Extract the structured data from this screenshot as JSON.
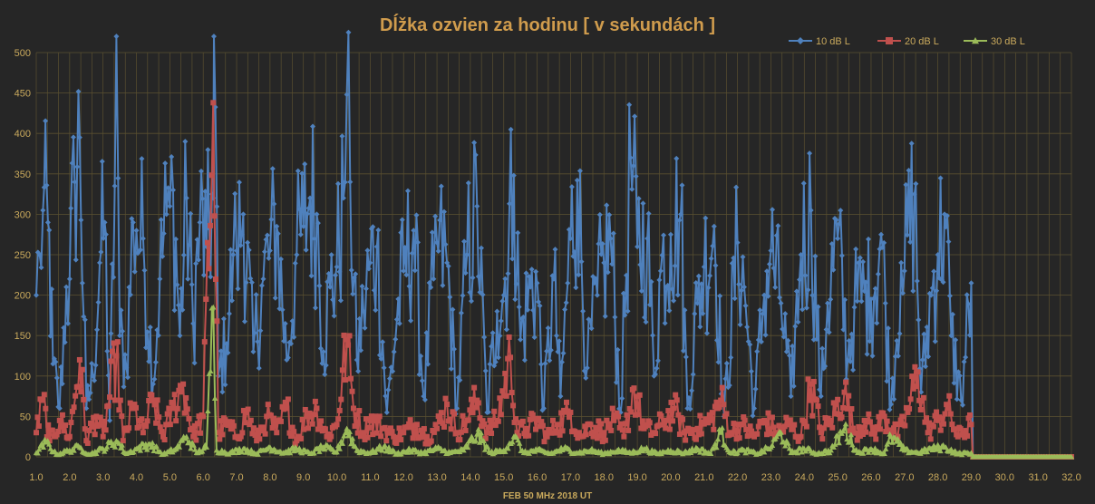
{
  "chart_data": {
    "type": "line",
    "title": "Dĺžka ozvien za hodinu [ v sekundách ]",
    "xlabel": "FEB 50 MHz  2018  UT",
    "ylabel": "",
    "xlim": [
      1.0,
      32.0
    ],
    "ylim": [
      0,
      500
    ],
    "x_ticks": [
      "1.0",
      "2.0",
      "3.0",
      "4.0",
      "5.0",
      "6.0",
      "7.0",
      "8.0",
      "9.0",
      "10.0",
      "11.0",
      "12.0",
      "13.0",
      "14.0",
      "15.0",
      "16.0",
      "17.0",
      "18.0",
      "19.0",
      "20.0",
      "21.0",
      "22.0",
      "23.0",
      "24.0",
      "25.0",
      "26.0",
      "27.0",
      "28.0",
      "29.0",
      "30.0",
      "31.0",
      "32.0"
    ],
    "y_ticks": [
      "0",
      "50",
      "100",
      "150",
      "200",
      "250",
      "300",
      "350",
      "400",
      "450",
      "500"
    ],
    "grid": true,
    "legend_position": "top-right",
    "colors": {
      "background": "#262626",
      "grid": "#5a5030",
      "axis_text": "#c9a95c",
      "title": "#d09c4d"
    },
    "sampling_note_hours": 1,
    "series": [
      {
        "name": "10 dB L",
        "color": "#4f81bd",
        "marker": "diamond",
        "keypoints": [
          [
            1.0,
            200
          ],
          [
            1.1,
            250
          ],
          [
            1.2,
            305
          ],
          [
            1.35,
            290
          ],
          [
            1.5,
            115
          ],
          [
            1.7,
            60
          ],
          [
            1.9,
            210
          ],
          [
            2.0,
            220
          ],
          [
            2.15,
            340
          ],
          [
            2.3,
            395
          ],
          [
            2.5,
            60
          ],
          [
            2.7,
            100
          ],
          [
            2.9,
            240
          ],
          [
            3.05,
            290
          ],
          [
            3.2,
            45
          ],
          [
            3.35,
            335
          ],
          [
            3.4,
            520
          ],
          [
            3.5,
            150
          ],
          [
            3.7,
            110
          ],
          [
            3.9,
            290
          ],
          [
            4.0,
            280
          ],
          [
            4.2,
            270
          ],
          [
            4.5,
            90
          ],
          [
            4.7,
            220
          ],
          [
            4.9,
            300
          ],
          [
            5.0,
            310
          ],
          [
            5.1,
            330
          ],
          [
            5.3,
            150
          ],
          [
            5.5,
            320
          ],
          [
            5.7,
            165
          ],
          [
            5.9,
            290
          ],
          [
            6.1,
            260
          ],
          [
            6.3,
            320
          ],
          [
            6.32,
            520
          ],
          [
            6.45,
            100
          ],
          [
            6.7,
            140
          ],
          [
            6.9,
            250
          ],
          [
            7.0,
            255
          ],
          [
            7.2,
            300
          ],
          [
            7.5,
            130
          ],
          [
            7.8,
            220
          ],
          [
            8.0,
            255
          ],
          [
            8.2,
            285
          ],
          [
            8.5,
            120
          ],
          [
            8.8,
            250
          ],
          [
            9.0,
            285
          ],
          [
            9.2,
            320
          ],
          [
            9.4,
            300
          ],
          [
            9.6,
            130
          ],
          [
            9.8,
            210
          ],
          [
            10.0,
            235
          ],
          [
            10.2,
            320
          ],
          [
            10.3,
            448
          ],
          [
            10.4,
            340
          ],
          [
            10.6,
            120
          ],
          [
            10.8,
            180
          ],
          [
            11.0,
            240
          ],
          [
            11.2,
            260
          ],
          [
            11.5,
            55
          ],
          [
            11.8,
            170
          ],
          [
            12.0,
            230
          ],
          [
            12.3,
            280
          ],
          [
            12.6,
            75
          ],
          [
            12.9,
            220
          ],
          [
            13.0,
            265
          ],
          [
            13.3,
            240
          ],
          [
            13.6,
            60
          ],
          [
            13.9,
            250
          ],
          [
            14.2,
            310
          ],
          [
            14.5,
            55
          ],
          [
            14.8,
            180
          ],
          [
            15.0,
            200
          ],
          [
            15.3,
            348
          ],
          [
            15.5,
            145
          ],
          [
            15.8,
            210
          ],
          [
            16.0,
            215
          ],
          [
            16.2,
            60
          ],
          [
            16.5,
            220
          ],
          [
            16.7,
            75
          ],
          [
            17.0,
            270
          ],
          [
            17.2,
            342
          ],
          [
            17.5,
            110
          ],
          [
            17.8,
            200
          ],
          [
            18.0,
            240
          ],
          [
            18.2,
            270
          ],
          [
            18.5,
            55
          ],
          [
            18.8,
            370
          ],
          [
            19.0,
            260
          ],
          [
            19.3,
            270
          ],
          [
            19.5,
            100
          ],
          [
            19.7,
            230
          ],
          [
            20.0,
            275
          ],
          [
            20.3,
            300
          ],
          [
            20.5,
            60
          ],
          [
            20.8,
            190
          ],
          [
            21.0,
            235
          ],
          [
            21.3,
            285
          ],
          [
            21.6,
            50
          ],
          [
            22.0,
            265
          ],
          [
            22.2,
            210
          ],
          [
            22.5,
            60
          ],
          [
            22.8,
            200
          ],
          [
            23.0,
            255
          ],
          [
            23.3,
            190
          ],
          [
            23.6,
            75
          ],
          [
            23.9,
            250
          ],
          [
            24.2,
            305
          ],
          [
            24.5,
            75
          ],
          [
            24.7,
            190
          ],
          [
            25.0,
            270
          ],
          [
            25.3,
            120
          ],
          [
            25.5,
            185
          ],
          [
            25.8,
            205
          ],
          [
            26.0,
            195
          ],
          [
            26.3,
            275
          ],
          [
            26.6,
            65
          ],
          [
            26.9,
            240
          ],
          [
            27.0,
            230
          ],
          [
            27.3,
            325
          ],
          [
            27.5,
            80
          ],
          [
            27.8,
            200
          ],
          [
            28.0,
            250
          ],
          [
            28.2,
            300
          ],
          [
            28.4,
            150
          ],
          [
            28.7,
            70
          ],
          [
            29.0,
            215
          ],
          [
            29.05,
            0
          ],
          [
            32.0,
            0
          ]
        ]
      },
      {
        "name": "20 dB L",
        "color": "#c0504d",
        "marker": "square",
        "keypoints": [
          [
            1.0,
            30
          ],
          [
            1.2,
            70
          ],
          [
            1.4,
            20
          ],
          [
            1.7,
            45
          ],
          [
            2.0,
            25
          ],
          [
            2.3,
            120
          ],
          [
            2.5,
            20
          ],
          [
            2.8,
            50
          ],
          [
            3.0,
            25
          ],
          [
            3.4,
            125
          ],
          [
            3.6,
            20
          ],
          [
            3.9,
            60
          ],
          [
            4.2,
            30
          ],
          [
            4.5,
            70
          ],
          [
            4.8,
            25
          ],
          [
            5.1,
            60
          ],
          [
            5.4,
            90
          ],
          [
            5.7,
            25
          ],
          [
            6.0,
            50
          ],
          [
            6.3,
            438
          ],
          [
            6.45,
            30
          ],
          [
            6.7,
            40
          ],
          [
            7.0,
            25
          ],
          [
            7.3,
            55
          ],
          [
            7.6,
            20
          ],
          [
            7.9,
            50
          ],
          [
            8.2,
            30
          ],
          [
            8.5,
            60
          ],
          [
            8.8,
            20
          ],
          [
            9.1,
            50
          ],
          [
            9.4,
            60
          ],
          [
            9.7,
            25
          ],
          [
            10.0,
            40
          ],
          [
            10.3,
            145
          ],
          [
            10.5,
            60
          ],
          [
            10.8,
            30
          ],
          [
            11.0,
            45
          ],
          [
            11.4,
            35
          ],
          [
            11.7,
            25
          ],
          [
            12.0,
            30
          ],
          [
            12.4,
            40
          ],
          [
            12.7,
            25
          ],
          [
            13.0,
            35
          ],
          [
            13.3,
            65
          ],
          [
            13.6,
            30
          ],
          [
            13.9,
            45
          ],
          [
            14.2,
            70
          ],
          [
            14.5,
            30
          ],
          [
            14.8,
            45
          ],
          [
            15.2,
            123
          ],
          [
            15.4,
            30
          ],
          [
            15.7,
            35
          ],
          [
            16.0,
            45
          ],
          [
            16.3,
            25
          ],
          [
            16.6,
            40
          ],
          [
            17.0,
            55
          ],
          [
            17.3,
            25
          ],
          [
            17.6,
            40
          ],
          [
            18.0,
            30
          ],
          [
            18.3,
            45
          ],
          [
            18.6,
            25
          ],
          [
            18.9,
            85
          ],
          [
            19.2,
            35
          ],
          [
            19.5,
            30
          ],
          [
            19.8,
            45
          ],
          [
            20.1,
            60
          ],
          [
            20.4,
            30
          ],
          [
            20.8,
            35
          ],
          [
            21.2,
            45
          ],
          [
            21.5,
            70
          ],
          [
            21.8,
            30
          ],
          [
            22.1,
            40
          ],
          [
            22.5,
            25
          ],
          [
            22.8,
            45
          ],
          [
            23.2,
            30
          ],
          [
            23.5,
            40
          ],
          [
            23.9,
            25
          ],
          [
            24.2,
            90
          ],
          [
            24.5,
            30
          ],
          [
            24.8,
            45
          ],
          [
            25.2,
            80
          ],
          [
            25.5,
            30
          ],
          [
            25.8,
            45
          ],
          [
            26.1,
            30
          ],
          [
            26.4,
            50
          ],
          [
            26.8,
            25
          ],
          [
            27.1,
            55
          ],
          [
            27.4,
            105
          ],
          [
            27.7,
            30
          ],
          [
            28.0,
            45
          ],
          [
            28.3,
            60
          ],
          [
            28.6,
            25
          ],
          [
            29.0,
            40
          ],
          [
            29.05,
            0
          ],
          [
            32.0,
            0
          ]
        ]
      },
      {
        "name": "30 dB L",
        "color": "#9bbb59",
        "marker": "triangle",
        "keypoints": [
          [
            1.0,
            5
          ],
          [
            1.3,
            18
          ],
          [
            1.6,
            3
          ],
          [
            2.0,
            8
          ],
          [
            2.3,
            12
          ],
          [
            2.6,
            3
          ],
          [
            3.0,
            10
          ],
          [
            3.4,
            20
          ],
          [
            3.7,
            4
          ],
          [
            4.0,
            10
          ],
          [
            4.4,
            16
          ],
          [
            4.8,
            3
          ],
          [
            5.2,
            10
          ],
          [
            5.5,
            25
          ],
          [
            5.8,
            5
          ],
          [
            6.1,
            12
          ],
          [
            6.3,
            185
          ],
          [
            6.4,
            8
          ],
          [
            6.8,
            5
          ],
          [
            7.2,
            10
          ],
          [
            7.6,
            4
          ],
          [
            8.0,
            12
          ],
          [
            8.4,
            5
          ],
          [
            8.8,
            10
          ],
          [
            9.2,
            4
          ],
          [
            9.6,
            12
          ],
          [
            10.0,
            6
          ],
          [
            10.3,
            35
          ],
          [
            10.6,
            8
          ],
          [
            11.0,
            5
          ],
          [
            11.4,
            12
          ],
          [
            11.8,
            4
          ],
          [
            12.2,
            8
          ],
          [
            12.6,
            5
          ],
          [
            13.0,
            10
          ],
          [
            13.4,
            5
          ],
          [
            13.8,
            8
          ],
          [
            14.2,
            28
          ],
          [
            14.6,
            5
          ],
          [
            15.0,
            8
          ],
          [
            15.3,
            25
          ],
          [
            15.6,
            5
          ],
          [
            16.0,
            8
          ],
          [
            16.4,
            4
          ],
          [
            16.8,
            10
          ],
          [
            17.2,
            5
          ],
          [
            17.6,
            8
          ],
          [
            18.0,
            4
          ],
          [
            18.4,
            8
          ],
          [
            18.8,
            5
          ],
          [
            19.2,
            10
          ],
          [
            19.6,
            4
          ],
          [
            20.0,
            8
          ],
          [
            20.4,
            5
          ],
          [
            20.8,
            10
          ],
          [
            21.2,
            4
          ],
          [
            21.5,
            30
          ],
          [
            21.8,
            5
          ],
          [
            22.2,
            8
          ],
          [
            22.6,
            4
          ],
          [
            23.0,
            12
          ],
          [
            23.3,
            30
          ],
          [
            23.6,
            5
          ],
          [
            24.0,
            10
          ],
          [
            24.4,
            4
          ],
          [
            24.8,
            8
          ],
          [
            25.2,
            35
          ],
          [
            25.6,
            5
          ],
          [
            26.0,
            10
          ],
          [
            26.4,
            4
          ],
          [
            26.6,
            25
          ],
          [
            27.0,
            8
          ],
          [
            27.4,
            5
          ],
          [
            27.8,
            10
          ],
          [
            28.2,
            12
          ],
          [
            28.6,
            4
          ],
          [
            29.0,
            5
          ],
          [
            29.05,
            0
          ],
          [
            32.0,
            0
          ]
        ]
      }
    ]
  }
}
